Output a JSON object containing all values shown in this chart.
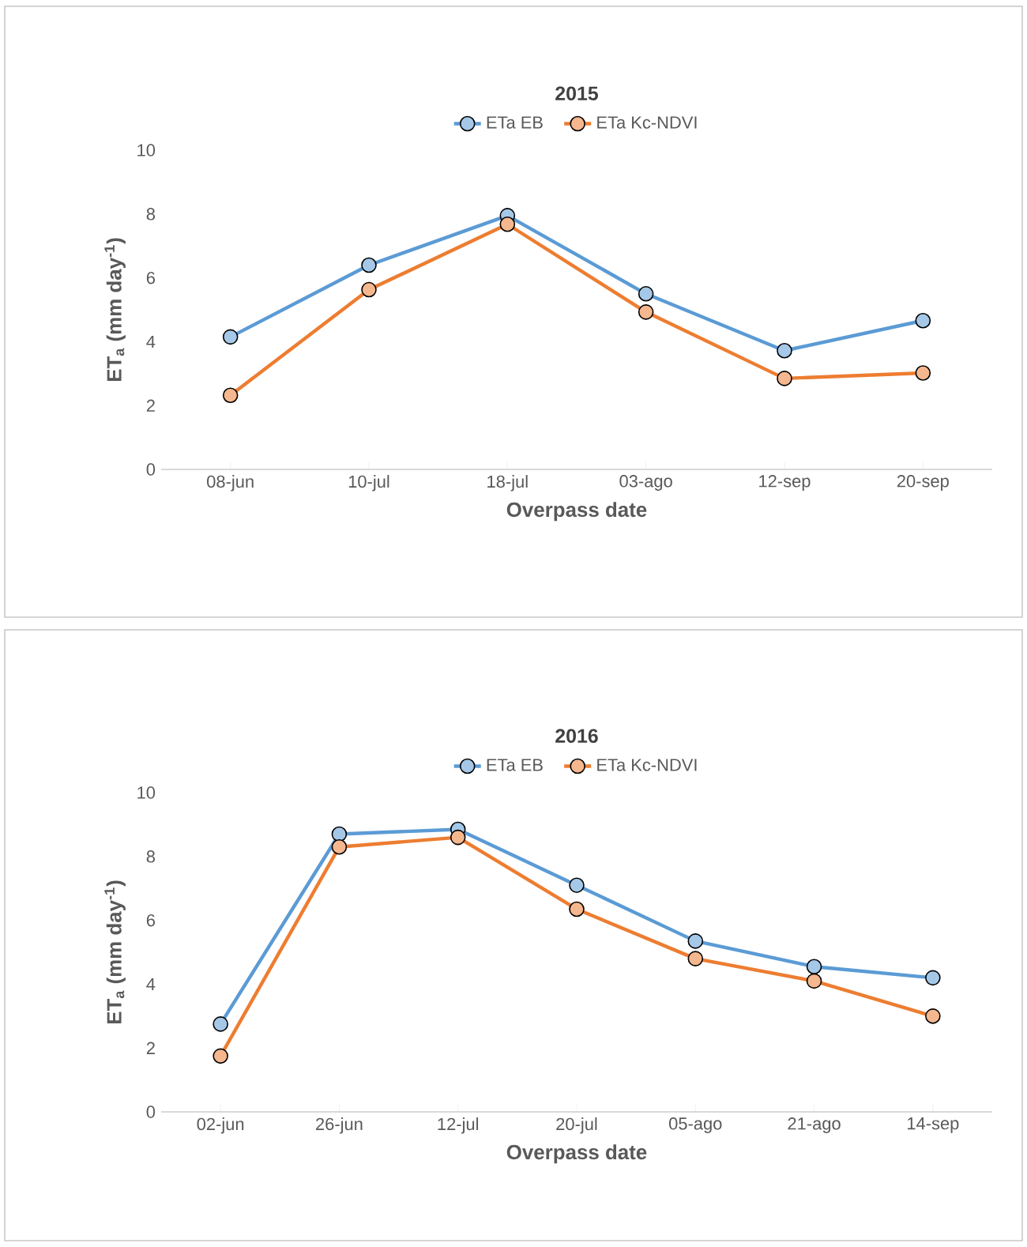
{
  "chart_data": [
    {
      "type": "line",
      "title": "2015",
      "xlabel": "Overpass date",
      "ylabel": "ET$_{a}$ (mm day$^{-1}$)",
      "categories": [
        "08-jun",
        "10-jul",
        "18-jul",
        "03-ago",
        "12-sep",
        "20-sep"
      ],
      "ylim": [
        0,
        10
      ],
      "yticks": [
        0,
        2,
        4,
        6,
        8,
        10
      ],
      "legend": "top",
      "marker": "circle",
      "grid": false,
      "series": [
        {
          "name": "ETa EB",
          "color": "#5b9bd5",
          "values": [
            4.15,
            6.4,
            7.95,
            5.5,
            3.72,
            4.66
          ]
        },
        {
          "name": "ETa Kc-NDVI",
          "color": "#ed7d31",
          "values": [
            2.32,
            5.63,
            7.68,
            4.93,
            2.85,
            3.02
          ]
        }
      ]
    },
    {
      "type": "line",
      "title": "2016",
      "xlabel": "Overpass date",
      "ylabel": "ET$_{a}$ (mm day$^{-1}$)",
      "categories": [
        "02-jun",
        "26-jun",
        "12-jul",
        "20-jul",
        "05-ago",
        "21-ago",
        "14-sep"
      ],
      "ylim": [
        0,
        10
      ],
      "yticks": [
        0,
        2,
        4,
        6,
        8,
        10
      ],
      "legend": "top",
      "marker": "circle",
      "grid": false,
      "series": [
        {
          "name": "ETa EB",
          "color": "#5b9bd5",
          "values": [
            2.75,
            8.7,
            8.85,
            7.1,
            5.35,
            4.55,
            4.2
          ]
        },
        {
          "name": "ETa Kc-NDVI",
          "color": "#ed7d31",
          "values": [
            1.75,
            8.3,
            8.6,
            6.35,
            4.8,
            4.1,
            3.0
          ]
        }
      ]
    }
  ]
}
